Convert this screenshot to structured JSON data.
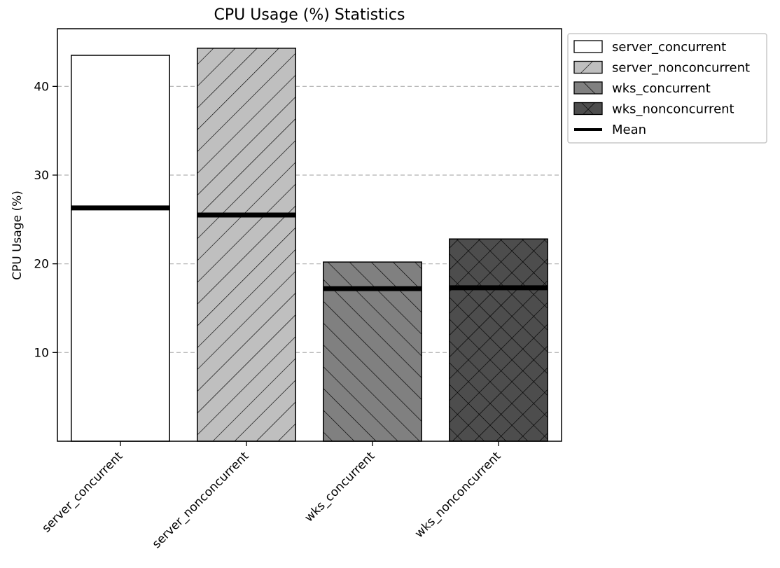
{
  "chart_data": {
    "type": "bar",
    "title": "CPU Usage (%) Statistics",
    "xlabel": "",
    "ylabel": "CPU Usage (%)",
    "ylim": [
      0,
      46.5
    ],
    "yticks": [
      10,
      20,
      30,
      40
    ],
    "grid": "y-dashed",
    "legend_position": "outside top-right",
    "categories": [
      "server_concurrent",
      "server_nonconcurrent",
      "wks_concurrent",
      "wks_nonconcurrent"
    ],
    "values": [
      43.5,
      44.3,
      20.2,
      22.8
    ],
    "mean_values": [
      26.3,
      25.5,
      17.2,
      17.3
    ],
    "bar_colors": [
      "#ffffff",
      "#bfbfbf",
      "#808080",
      "#4d4d4d"
    ],
    "hatches": [
      "none",
      "//",
      "\\\\",
      "xx"
    ],
    "legend": [
      "server_concurrent",
      "server_nonconcurrent",
      "wks_concurrent",
      "wks_nonconcurrent",
      "Mean"
    ]
  }
}
